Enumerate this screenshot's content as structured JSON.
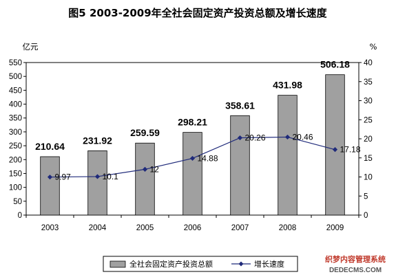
{
  "chart_data": {
    "type": "bar",
    "title": "图5  2003-2009年全社会固定资产投资总额及增长速度",
    "left_unit": "亿元",
    "right_unit": "%",
    "categories": [
      "2003",
      "2004",
      "2005",
      "2006",
      "2007",
      "2008",
      "2009"
    ],
    "series": [
      {
        "name": "全社会固定资产投资总额",
        "type": "bar",
        "axis": "left",
        "values": [
          210.64,
          231.92,
          259.59,
          298.21,
          358.61,
          431.98,
          506.18
        ],
        "labels": [
          "210.64",
          "231.92",
          "259.59",
          "298.21",
          "358.61",
          "431.98",
          "506.18"
        ],
        "color": "#a0a0a0"
      },
      {
        "name": "增长速度",
        "type": "line",
        "axis": "right",
        "values": [
          9.97,
          10.1,
          12,
          14.88,
          20.26,
          20.46,
          17.18
        ],
        "labels": [
          "9.97",
          "10.1",
          "12",
          "14.88",
          "20.26",
          "20.46",
          "17.18"
        ],
        "color": "#1f2a7a"
      }
    ],
    "y_left": {
      "min": 0,
      "max": 550,
      "ticks": [
        "0",
        "50",
        "100",
        "150",
        "200",
        "250",
        "300",
        "350",
        "400",
        "450",
        "500",
        "550"
      ]
    },
    "y_right": {
      "min": 0,
      "max": 40,
      "ticks": [
        "0",
        "5",
        "10",
        "15",
        "20",
        "25",
        "30",
        "35",
        "40"
      ]
    },
    "grid": false,
    "legend": "bottom"
  },
  "watermark": {
    "line1": "织梦内容管理系统",
    "line2": "DEDECMS.COM"
  }
}
